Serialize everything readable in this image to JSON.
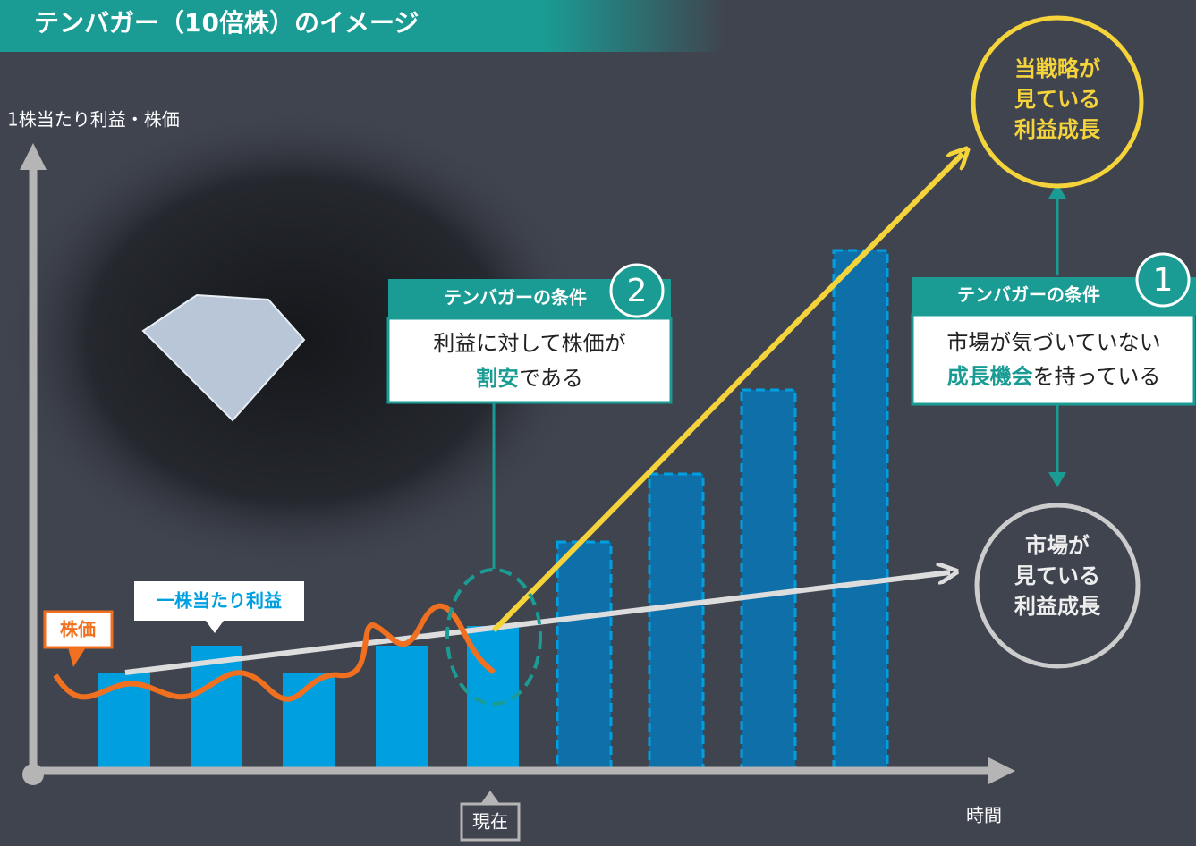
{
  "header": {
    "title": "テンバガー（10倍株）のイメージ"
  },
  "axes": {
    "y_label": "1株当たり利益・株価",
    "x_label": "時間",
    "now_label": "現在"
  },
  "legend": {
    "eps": "一株当たり利益",
    "price": "株価"
  },
  "condition_2": {
    "heading": "テンバガーの条件",
    "number": "2",
    "line1": "利益に対して株価が",
    "highlight": "割安",
    "rest": "である"
  },
  "condition_1": {
    "heading": "テンバガーの条件",
    "number": "1",
    "line1": "市場が気づいていない",
    "highlight": "成長機会",
    "rest": "を持っている"
  },
  "strategy_circle": {
    "lines": [
      "当戦略が",
      "見ている",
      "利益成長"
    ]
  },
  "market_circle": {
    "lines": [
      "市場が",
      "見ている",
      "利益成長"
    ]
  }
}
